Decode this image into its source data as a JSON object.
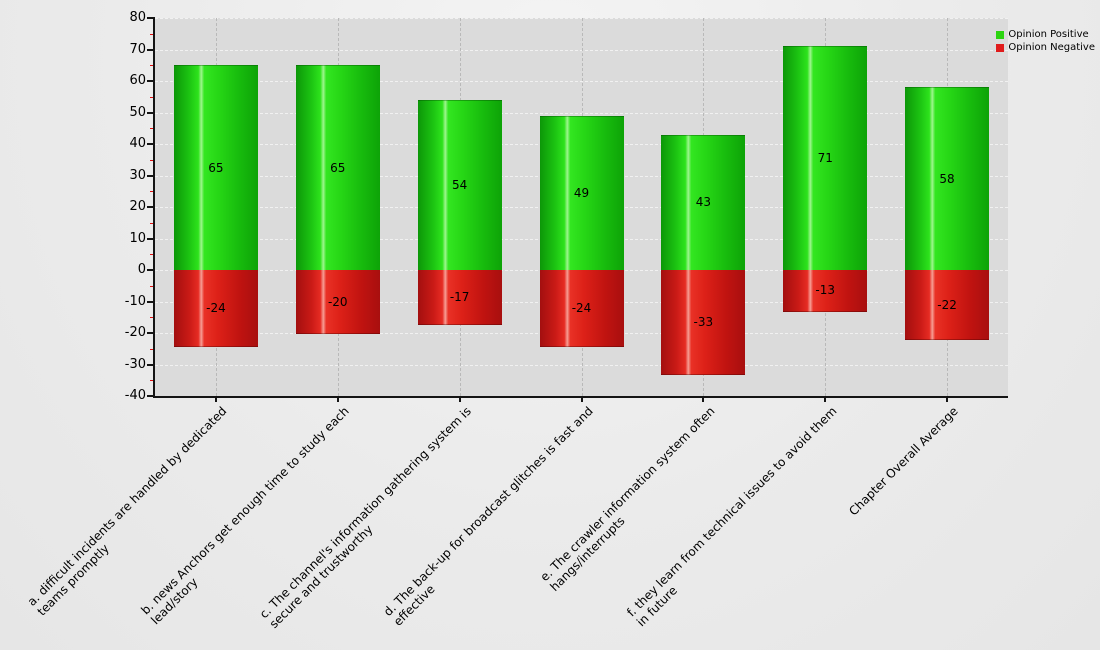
{
  "chart_data": {
    "type": "bar",
    "title": "",
    "xlabel": "",
    "ylabel": "",
    "categories": [
      "a. difficult incidents are handled by dedicated\nteams promptly",
      "b. news Anchors get enough time to study each\nlead/story",
      "c. The channel's information gathering system is\nsecure and trustworthy",
      "d. The back-up for broadcast glitches is fast and\neffective",
      "e. The crawler information system often\nhangs/interrupts",
      "f. they learn from technical issues to avoid them\nin future",
      "Chapter Overall Average"
    ],
    "series": [
      {
        "name": "Opinion Positive",
        "color": "#2bd40f",
        "values": [
          65,
          65,
          54,
          49,
          43,
          71,
          58
        ]
      },
      {
        "name": "Opinion Negative",
        "color": "#e01b1b",
        "values": [
          -24,
          -20,
          -17,
          -24,
          -33,
          -13,
          -22
        ]
      }
    ],
    "ylim": [
      -40,
      80
    ],
    "ytick_step": 10,
    "y_minor_tick_step": 5,
    "y_minor_tick_color": "#e01010",
    "grid": "dashed horizontal lines every 10 units; dashed vertical lines at category centers",
    "legend_position": "top-right",
    "bar_value_labels": "values printed inside each bar segment",
    "plot_background": "#dbdbdb",
    "figure_background": "#ebebeb"
  }
}
